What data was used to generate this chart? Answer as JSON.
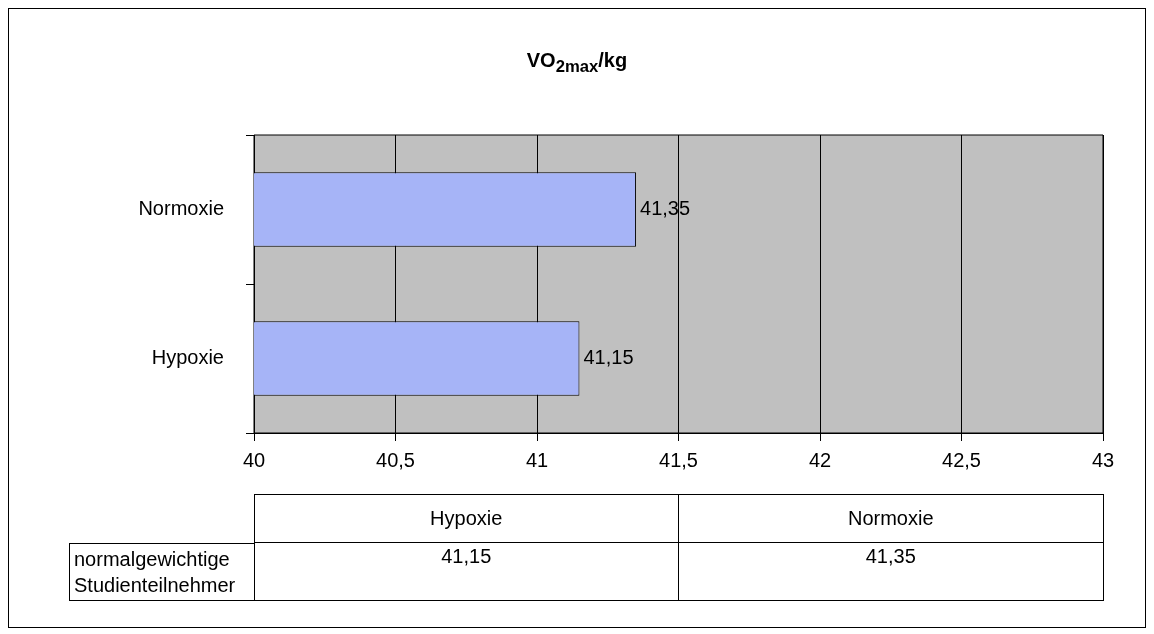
{
  "chart_data": {
    "type": "bar",
    "orientation": "horizontal",
    "title": "VO$_{2max}$/kg",
    "categories": [
      "Normoxie",
      "Hypoxie"
    ],
    "series": [
      {
        "name": "normalgewichtige Studienteilnehmer",
        "color": "#a6b4f7",
        "values": [
          41.35,
          41.15
        ],
        "value_labels": [
          "41,35",
          "41,15"
        ]
      }
    ],
    "xlim": [
      40,
      43
    ],
    "xticks": [
      40,
      {
        "value": 40.5,
        "label": "40,5"
      },
      41,
      {
        "value": 41.5,
        "label": "41,5"
      },
      42,
      {
        "value": 42.5,
        "label": "42,5"
      },
      43
    ],
    "grid": "x",
    "legend": false
  }
}
